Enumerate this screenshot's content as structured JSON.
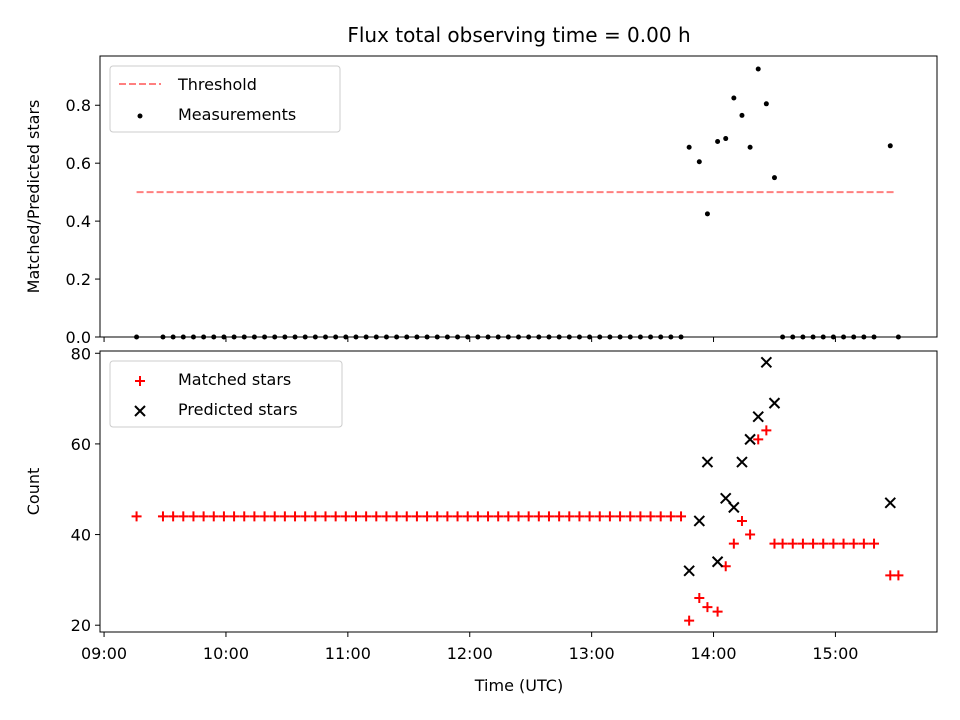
{
  "chart_data": {
    "title": "Flux total observing time = 0.00 h",
    "x_axis": {
      "label": "Time (UTC)",
      "ticks": [
        "09:00",
        "10:00",
        "11:00",
        "12:00",
        "13:00",
        "14:00",
        "15:00"
      ],
      "range": [
        "08:58",
        "15:50"
      ]
    },
    "panels": [
      {
        "type": "scatter",
        "ylabel": "Matched/Predicted stars",
        "ylim": [
          0,
          0.97
        ],
        "yticks": [
          "0.0",
          "0.2",
          "0.4",
          "0.6",
          "0.8"
        ],
        "grid": false,
        "legend": "top-left",
        "series": [
          {
            "name": "Threshold",
            "kind": "dashed-line",
            "color": "#ff7f7f",
            "points": [
              [
                "09:16",
                0.5
              ],
              [
                "15:30",
                0.5
              ]
            ]
          },
          {
            "name": "Measurements",
            "kind": "dot",
            "color": "#000000",
            "points": [
              [
                "09:16",
                0
              ],
              [
                "09:29",
                0
              ],
              [
                "09:34",
                0
              ],
              [
                "09:39",
                0
              ],
              [
                "09:44",
                0
              ],
              [
                "09:49",
                0
              ],
              [
                "09:54",
                0
              ],
              [
                "09:59",
                0
              ],
              [
                "10:04",
                0
              ],
              [
                "10:09",
                0
              ],
              [
                "10:14",
                0
              ],
              [
                "10:19",
                0
              ],
              [
                "10:24",
                0
              ],
              [
                "10:29",
                0
              ],
              [
                "10:34",
                0
              ],
              [
                "10:39",
                0
              ],
              [
                "10:44",
                0
              ],
              [
                "10:49",
                0
              ],
              [
                "10:54",
                0
              ],
              [
                "10:59",
                0
              ],
              [
                "11:04",
                0
              ],
              [
                "11:09",
                0
              ],
              [
                "11:14",
                0
              ],
              [
                "11:19",
                0
              ],
              [
                "11:24",
                0
              ],
              [
                "11:29",
                0
              ],
              [
                "11:34",
                0
              ],
              [
                "11:39",
                0
              ],
              [
                "11:44",
                0
              ],
              [
                "11:49",
                0
              ],
              [
                "11:54",
                0
              ],
              [
                "11:59",
                0
              ],
              [
                "12:04",
                0
              ],
              [
                "12:09",
                0
              ],
              [
                "12:14",
                0
              ],
              [
                "12:19",
                0
              ],
              [
                "12:24",
                0
              ],
              [
                "12:29",
                0
              ],
              [
                "12:34",
                0
              ],
              [
                "12:39",
                0
              ],
              [
                "12:44",
                0
              ],
              [
                "12:49",
                0
              ],
              [
                "12:54",
                0
              ],
              [
                "12:59",
                0
              ],
              [
                "13:04",
                0
              ],
              [
                "13:09",
                0
              ],
              [
                "13:14",
                0
              ],
              [
                "13:19",
                0
              ],
              [
                "13:24",
                0
              ],
              [
                "13:29",
                0
              ],
              [
                "13:34",
                0
              ],
              [
                "13:39",
                0
              ],
              [
                "13:44",
                0
              ],
              [
                "13:48",
                0.655
              ],
              [
                "13:53",
                0.605
              ],
              [
                "13:57",
                0.425
              ],
              [
                "14:02",
                0.675
              ],
              [
                "14:06",
                0.685
              ],
              [
                "14:10",
                0.825
              ],
              [
                "14:14",
                0.765
              ],
              [
                "14:18",
                0.655
              ],
              [
                "14:22",
                0.925
              ],
              [
                "14:26",
                0.805
              ],
              [
                "14:30",
                0.55
              ],
              [
                "14:34",
                0
              ],
              [
                "14:39",
                0
              ],
              [
                "14:44",
                0
              ],
              [
                "14:49",
                0
              ],
              [
                "14:54",
                0
              ],
              [
                "14:59",
                0
              ],
              [
                "15:04",
                0
              ],
              [
                "15:09",
                0
              ],
              [
                "15:14",
                0
              ],
              [
                "15:19",
                0
              ],
              [
                "15:27",
                0.66
              ],
              [
                "15:31",
                0
              ]
            ]
          }
        ]
      },
      {
        "type": "scatter",
        "ylabel": "Count",
        "ylim": [
          18.5,
          80.5
        ],
        "yticks": [
          "20",
          "40",
          "60",
          "80"
        ],
        "grid": false,
        "legend": "top-left",
        "series": [
          {
            "name": "Matched stars",
            "kind": "plus",
            "color": "#ff0000",
            "points": [
              [
                "09:16",
                44
              ],
              [
                "09:29",
                44
              ],
              [
                "09:34",
                44
              ],
              [
                "09:39",
                44
              ],
              [
                "09:44",
                44
              ],
              [
                "09:49",
                44
              ],
              [
                "09:54",
                44
              ],
              [
                "09:59",
                44
              ],
              [
                "10:04",
                44
              ],
              [
                "10:09",
                44
              ],
              [
                "10:14",
                44
              ],
              [
                "10:19",
                44
              ],
              [
                "10:24",
                44
              ],
              [
                "10:29",
                44
              ],
              [
                "10:34",
                44
              ],
              [
                "10:39",
                44
              ],
              [
                "10:44",
                44
              ],
              [
                "10:49",
                44
              ],
              [
                "10:54",
                44
              ],
              [
                "10:59",
                44
              ],
              [
                "11:04",
                44
              ],
              [
                "11:09",
                44
              ],
              [
                "11:14",
                44
              ],
              [
                "11:19",
                44
              ],
              [
                "11:24",
                44
              ],
              [
                "11:29",
                44
              ],
              [
                "11:34",
                44
              ],
              [
                "11:39",
                44
              ],
              [
                "11:44",
                44
              ],
              [
                "11:49",
                44
              ],
              [
                "11:54",
                44
              ],
              [
                "11:59",
                44
              ],
              [
                "12:04",
                44
              ],
              [
                "12:09",
                44
              ],
              [
                "12:14",
                44
              ],
              [
                "12:19",
                44
              ],
              [
                "12:24",
                44
              ],
              [
                "12:29",
                44
              ],
              [
                "12:34",
                44
              ],
              [
                "12:39",
                44
              ],
              [
                "12:44",
                44
              ],
              [
                "12:49",
                44
              ],
              [
                "12:54",
                44
              ],
              [
                "12:59",
                44
              ],
              [
                "13:04",
                44
              ],
              [
                "13:09",
                44
              ],
              [
                "13:14",
                44
              ],
              [
                "13:19",
                44
              ],
              [
                "13:24",
                44
              ],
              [
                "13:29",
                44
              ],
              [
                "13:34",
                44
              ],
              [
                "13:39",
                44
              ],
              [
                "13:44",
                44
              ],
              [
                "13:48",
                21
              ],
              [
                "13:53",
                26
              ],
              [
                "13:57",
                24
              ],
              [
                "14:02",
                23
              ],
              [
                "14:06",
                33
              ],
              [
                "14:10",
                38
              ],
              [
                "14:14",
                43
              ],
              [
                "14:18",
                40
              ],
              [
                "14:22",
                61
              ],
              [
                "14:26",
                63
              ],
              [
                "14:30",
                38
              ],
              [
                "14:34",
                38
              ],
              [
                "14:39",
                38
              ],
              [
                "14:44",
                38
              ],
              [
                "14:49",
                38
              ],
              [
                "14:54",
                38
              ],
              [
                "14:59",
                38
              ],
              [
                "15:04",
                38
              ],
              [
                "15:09",
                38
              ],
              [
                "15:14",
                38
              ],
              [
                "15:19",
                38
              ],
              [
                "15:27",
                31
              ],
              [
                "15:31",
                31
              ]
            ]
          },
          {
            "name": "Predicted stars",
            "kind": "x",
            "color": "#000000",
            "points": [
              [
                "13:48",
                32
              ],
              [
                "13:53",
                43
              ],
              [
                "13:57",
                56
              ],
              [
                "14:02",
                34
              ],
              [
                "14:06",
                48
              ],
              [
                "14:10",
                46
              ],
              [
                "14:14",
                56
              ],
              [
                "14:18",
                61
              ],
              [
                "14:22",
                66
              ],
              [
                "14:26",
                78
              ],
              [
                "14:30",
                69
              ],
              [
                "15:27",
                47
              ]
            ]
          }
        ]
      }
    ]
  }
}
